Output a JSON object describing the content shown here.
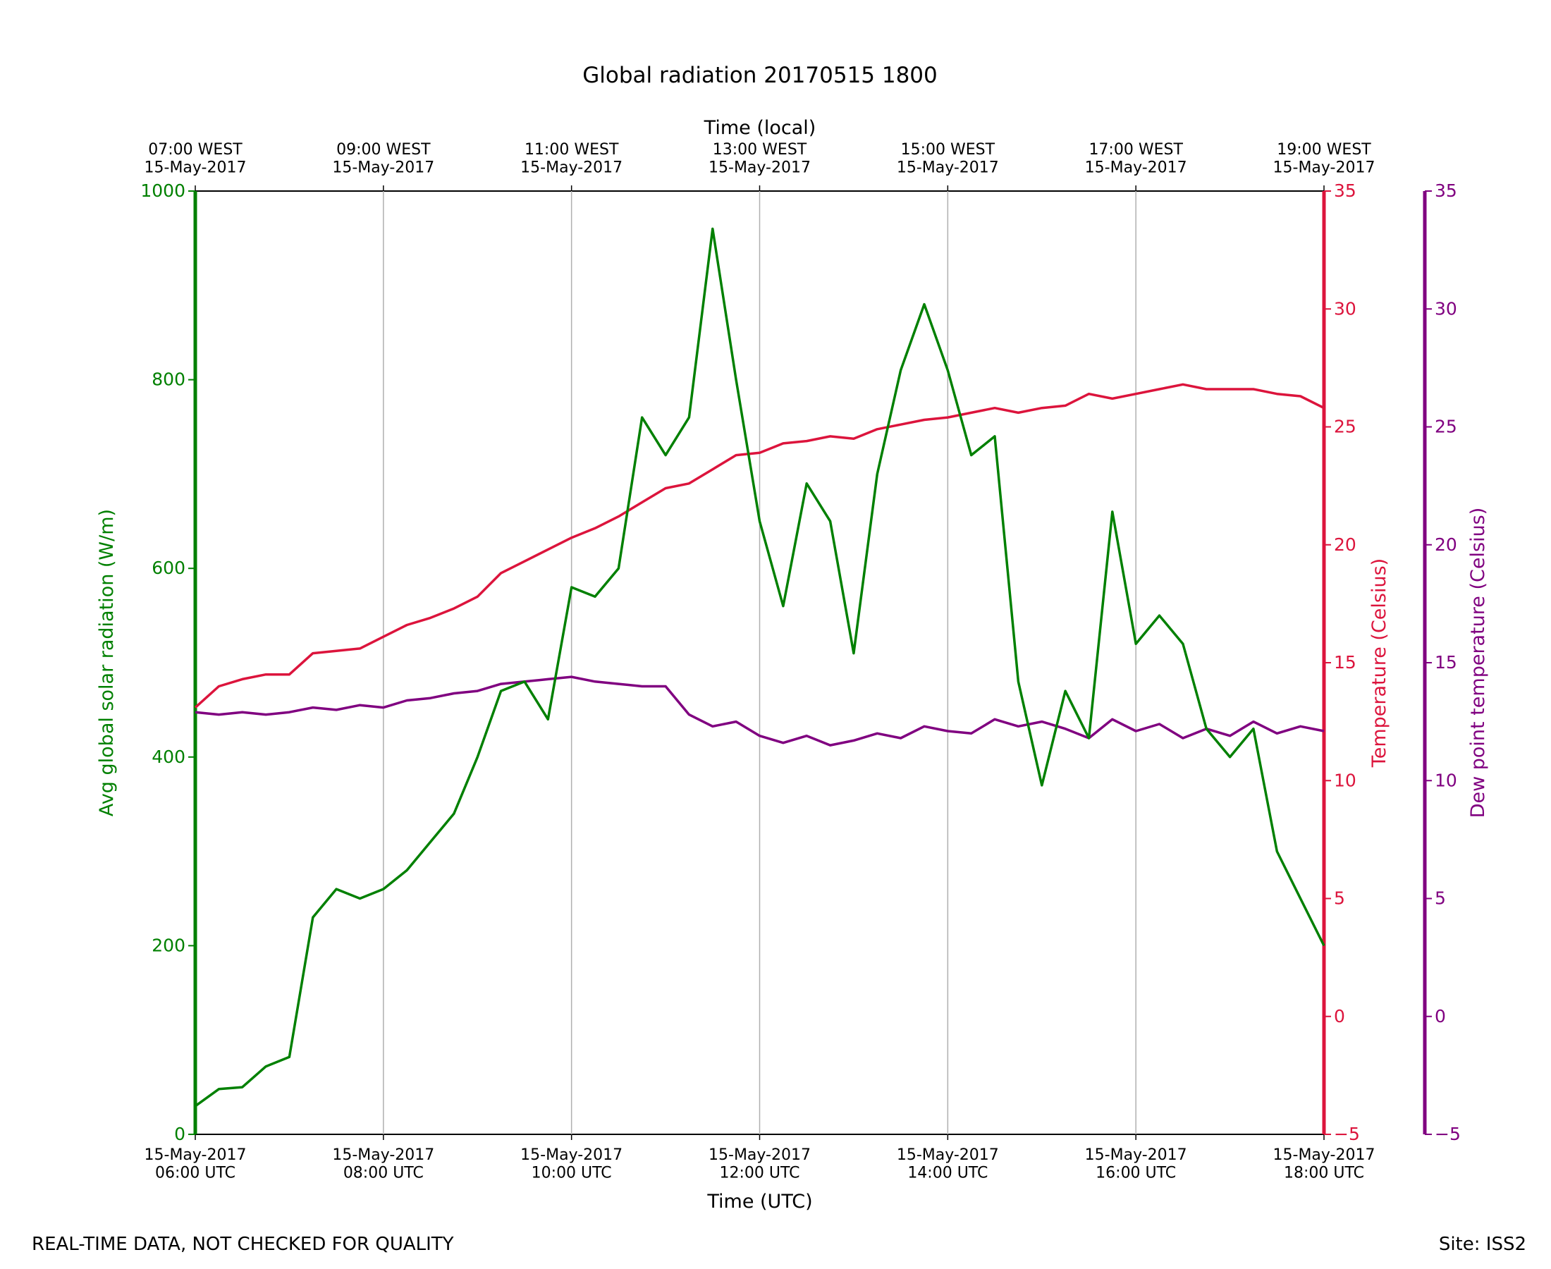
{
  "chart_data": {
    "type": "line",
    "title": "Global radiation 20170515 1800",
    "xlabel": "Time (UTC)",
    "x2label": "Time (local)",
    "ylabel": "Avg global solar radiation (W/m)",
    "y2label": "Temperature (Celsius)",
    "y3label": "Dew point temperature (Celsius)",
    "grid": "x",
    "xlim": [
      "06:00",
      "18:00"
    ],
    "xticks": [
      {
        "value": "06:00",
        "label": "15-May-2017\n06:00 UTC"
      },
      {
        "value": "08:00",
        "label": "15-May-2017\n08:00 UTC"
      },
      {
        "value": "10:00",
        "label": "15-May-2017\n10:00 UTC"
      },
      {
        "value": "12:00",
        "label": "15-May-2017\n12:00 UTC"
      },
      {
        "value": "14:00",
        "label": "15-May-2017\n14:00 UTC"
      },
      {
        "value": "16:00",
        "label": "15-May-2017\n16:00 UTC"
      },
      {
        "value": "18:00",
        "label": "15-May-2017\n18:00 UTC"
      }
    ],
    "x2ticks": [
      {
        "value": "06:00",
        "label": "07:00 WEST\n15-May-2017"
      },
      {
        "value": "08:00",
        "label": "09:00 WEST\n15-May-2017"
      },
      {
        "value": "10:00",
        "label": "11:00 WEST\n15-May-2017"
      },
      {
        "value": "12:00",
        "label": "13:00 WEST\n15-May-2017"
      },
      {
        "value": "14:00",
        "label": "15:00 WEST\n15-May-2017"
      },
      {
        "value": "16:00",
        "label": "17:00 WEST\n15-May-2017"
      },
      {
        "value": "18:00",
        "label": "19:00 WEST\n15-May-2017"
      }
    ],
    "ylim": [
      0,
      1000
    ],
    "yticks": [
      0,
      200,
      400,
      600,
      800,
      1000
    ],
    "y2lim": [
      -5,
      35
    ],
    "y2ticks": [
      {
        "value": -5,
        "label": "−5"
      },
      0,
      5,
      10,
      15,
      20,
      25,
      30,
      35
    ],
    "y3lim": [
      -5,
      35
    ],
    "y3ticks": [
      {
        "value": -5,
        "label": "−5"
      },
      0,
      5,
      10,
      15,
      20,
      25,
      30,
      35
    ],
    "x": [
      "06:00",
      "06:15",
      "06:30",
      "06:45",
      "07:00",
      "07:15",
      "07:30",
      "07:45",
      "08:00",
      "08:15",
      "08:30",
      "08:45",
      "09:00",
      "09:15",
      "09:30",
      "09:45",
      "10:00",
      "10:15",
      "10:30",
      "10:45",
      "11:00",
      "11:15",
      "11:30",
      "11:45",
      "12:00",
      "12:15",
      "12:30",
      "12:45",
      "13:00",
      "13:15",
      "13:30",
      "13:45",
      "14:00",
      "14:15",
      "14:30",
      "14:45",
      "15:00",
      "15:15",
      "15:30",
      "15:45",
      "16:00",
      "16:15",
      "16:30",
      "16:45",
      "17:00",
      "17:15",
      "17:30",
      "17:45",
      "18:00"
    ],
    "series": [
      {
        "name": "Avg global solar radiation",
        "color": "#008000",
        "axis": "y",
        "values": [
          30,
          48,
          50,
          72,
          82,
          230,
          260,
          250,
          260,
          280,
          310,
          340,
          400,
          470,
          480,
          440,
          580,
          570,
          600,
          760,
          720,
          760,
          960,
          800,
          650,
          560,
          690,
          650,
          510,
          700,
          810,
          880,
          810,
          720,
          740,
          480,
          370,
          470,
          420,
          660,
          520,
          550,
          520,
          430,
          400,
          430,
          300,
          250,
          200
        ]
      },
      {
        "name": "Temperature",
        "color": "#dc143c",
        "axis": "y2",
        "values": [
          13.1,
          14.0,
          14.3,
          14.5,
          14.5,
          15.4,
          15.5,
          15.6,
          16.1,
          16.6,
          16.9,
          17.3,
          17.8,
          18.8,
          19.3,
          19.8,
          20.3,
          20.7,
          21.2,
          21.8,
          22.4,
          22.6,
          23.2,
          23.8,
          23.9,
          24.3,
          24.4,
          24.6,
          24.5,
          24.9,
          25.1,
          25.3,
          25.4,
          25.6,
          25.8,
          25.6,
          25.8,
          25.9,
          26.4,
          26.2,
          26.4,
          26.6,
          26.8,
          26.6,
          26.6,
          26.6,
          26.4,
          26.3,
          25.8
        ]
      },
      {
        "name": "Dew point temperature",
        "color": "#800080",
        "axis": "y3",
        "values": [
          12.9,
          12.8,
          12.9,
          12.8,
          12.9,
          13.1,
          13.0,
          13.2,
          13.1,
          13.4,
          13.5,
          13.7,
          13.8,
          14.1,
          14.2,
          14.3,
          14.4,
          14.2,
          14.1,
          14.0,
          14.0,
          12.8,
          12.3,
          12.5,
          11.9,
          11.6,
          11.9,
          11.5,
          11.7,
          12.0,
          11.8,
          12.3,
          12.1,
          12.0,
          12.6,
          12.3,
          12.5,
          12.2,
          11.8,
          12.6,
          12.1,
          12.4,
          11.8,
          12.2,
          11.9,
          12.5,
          12.0,
          12.3,
          12.1
        ]
      }
    ]
  },
  "footer": {
    "left": "REAL-TIME DATA, NOT CHECKED FOR QUALITY",
    "right": "Site: ISS2"
  }
}
